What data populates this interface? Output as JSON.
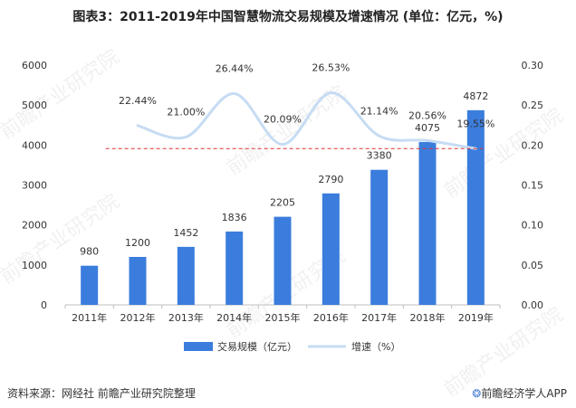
{
  "title": "图表3：2011-2019年中国智慧物流交易规模及增速情况 (单位：亿元，%)",
  "source": "资料来源：网经社 前瞻产业研究院整理",
  "brand": "前瞻经济学人APP",
  "watermark": "前瞻产业研究院",
  "colors": {
    "bar": "#3b7ddd",
    "line": "#c6dcf3",
    "reference": "#e03030",
    "axis": "#bfbfbf",
    "text": "#333333"
  },
  "chart_data": {
    "type": "bar",
    "categories": [
      "2011年",
      "2012年",
      "2013年",
      "2014年",
      "2015年",
      "2016年",
      "2017年",
      "2018年",
      "2019年"
    ],
    "series": [
      {
        "name": "交易规模（亿元）",
        "type": "bar",
        "axis": "left",
        "values": [
          980,
          1200,
          1452,
          1836,
          2205,
          2790,
          3380,
          4075,
          4872
        ],
        "labels": [
          "980",
          "1200",
          "1452",
          "1836",
          "2205",
          "2790",
          "3380",
          "4075",
          "4872"
        ]
      },
      {
        "name": "增速（%）",
        "type": "line",
        "axis": "right",
        "x": [
          "2012年",
          "2013年",
          "2014年",
          "2015年",
          "2016年",
          "2017年",
          "2018年",
          "2019年"
        ],
        "values": [
          0.2244,
          0.21,
          0.2644,
          0.2009,
          0.2653,
          0.2114,
          0.2056,
          0.1955
        ],
        "labels": [
          "22.44%",
          "21.00%",
          "26.44%",
          "20.09%",
          "26.53%",
          "21.14%",
          "20.56%",
          "19.55%"
        ]
      }
    ],
    "reference_line": {
      "axis": "right",
      "value": 0.1955,
      "style": "dashed"
    },
    "ylim_left": [
      0,
      6000
    ],
    "ylim_right": [
      0,
      0.3
    ],
    "yticks_left": [
      "0",
      "1000",
      "2000",
      "3000",
      "4000",
      "5000",
      "6000"
    ],
    "yticks_right": [
      "0.00",
      "0.05",
      "0.10",
      "0.15",
      "0.20",
      "0.25",
      "0.30"
    ],
    "legend": [
      "交易规模（亿元）",
      "增速（%）"
    ],
    "legend_position": "bottom",
    "grid": false
  }
}
